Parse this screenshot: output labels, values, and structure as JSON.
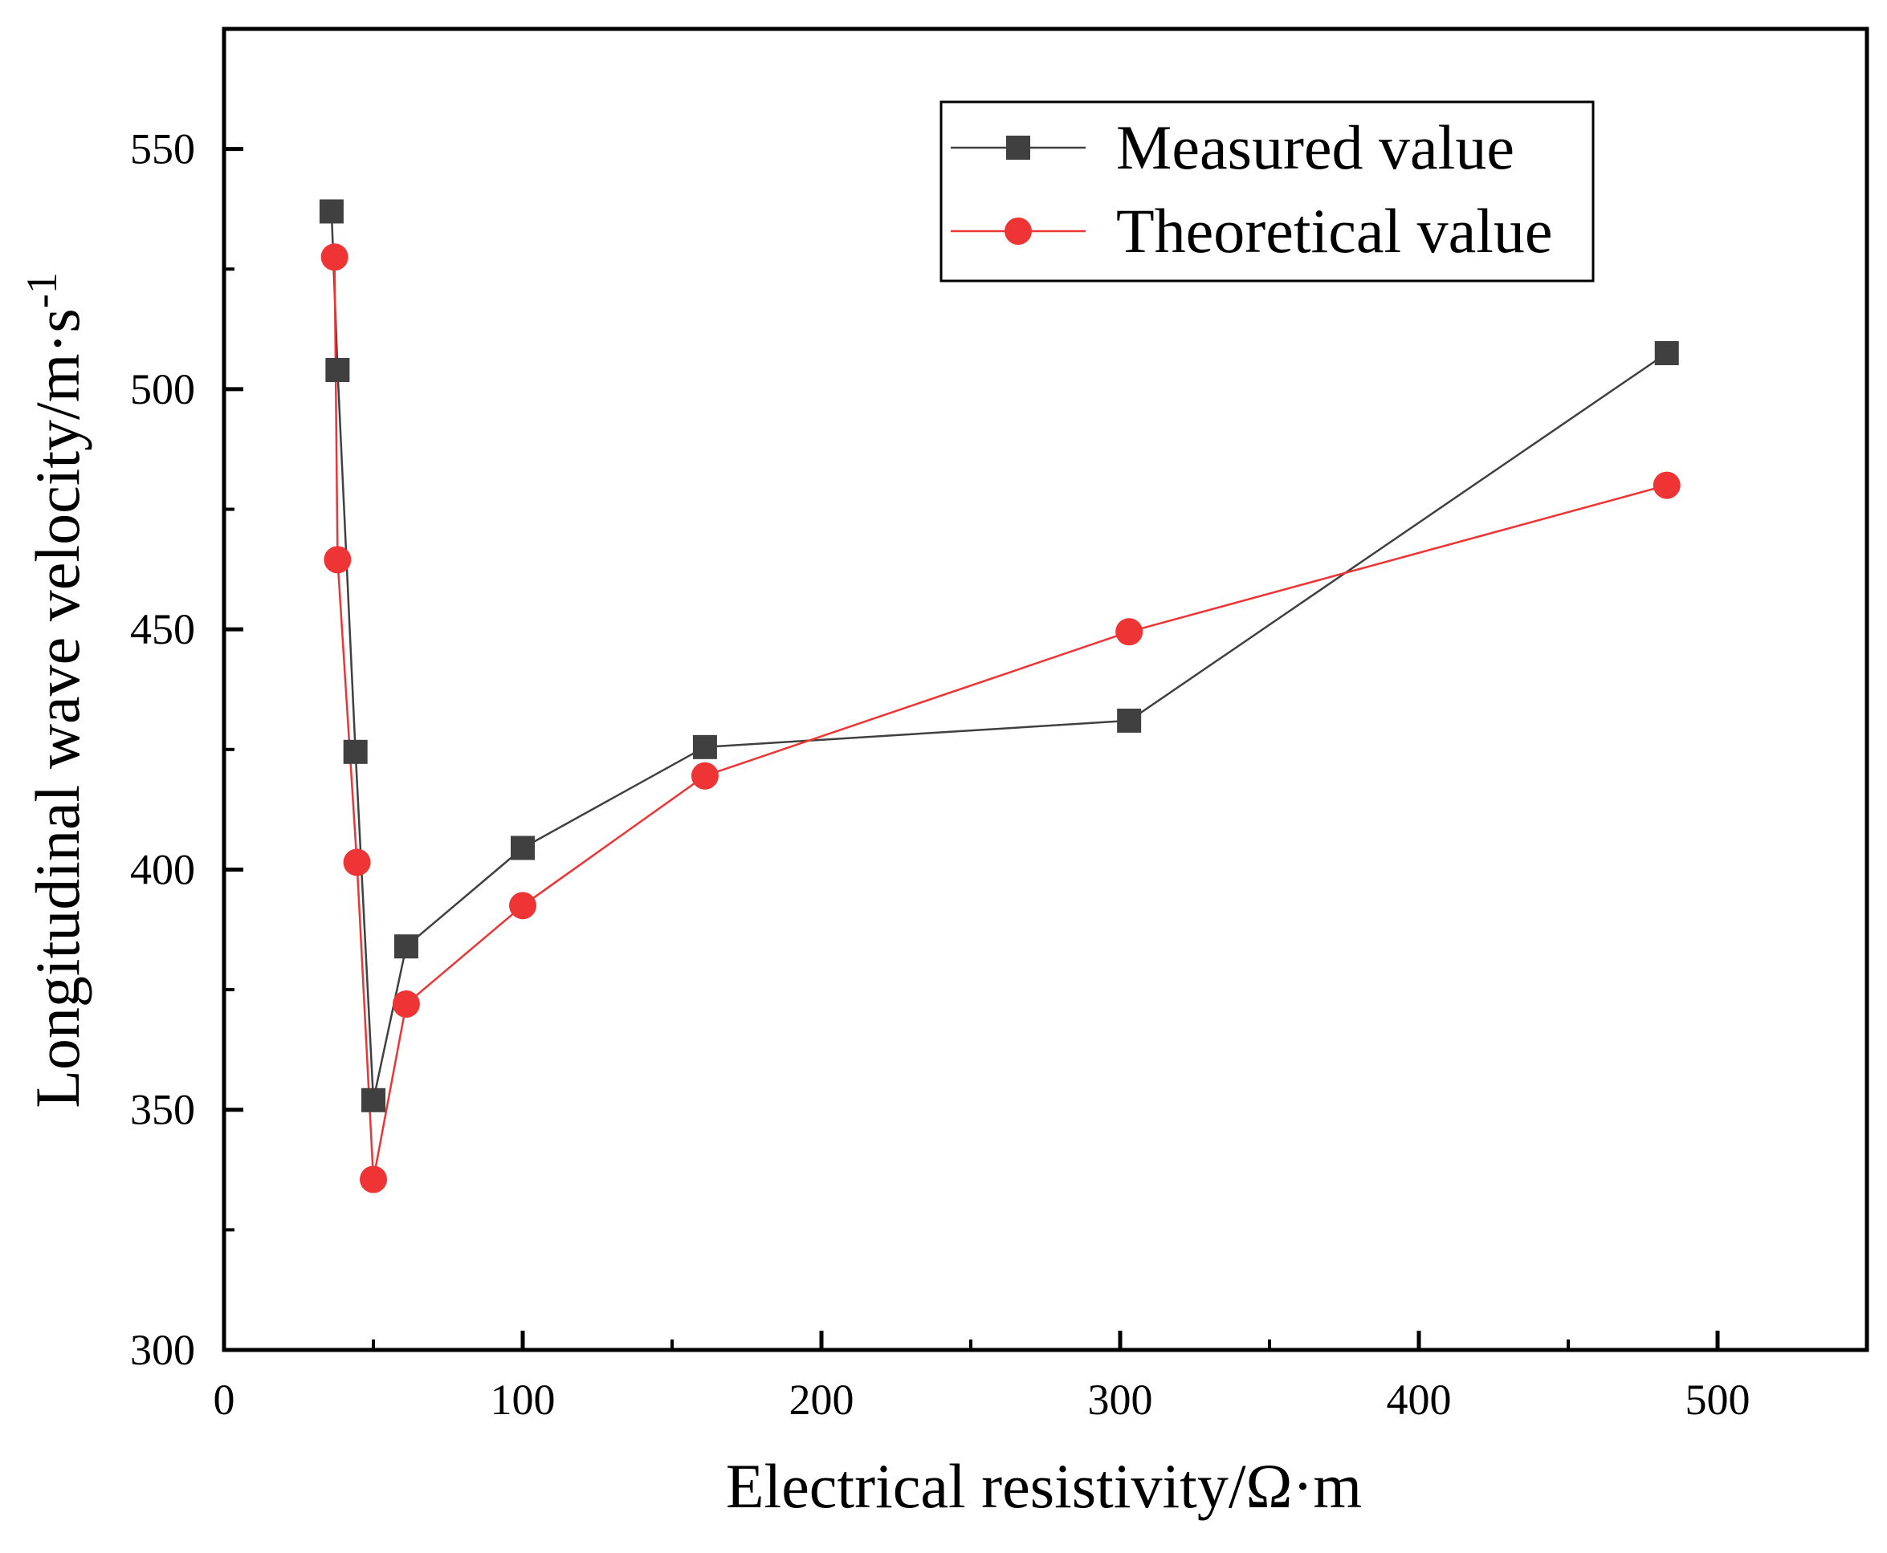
{
  "chart_data": {
    "type": "line",
    "title": "",
    "xlabel": "Electrical resistivity/Ω·m",
    "ylabel": "Longitudinal wave velocity/m·s",
    "ylabel_superscript": "-1",
    "xlim": [
      0,
      550
    ],
    "ylim": [
      300,
      575
    ],
    "x_ticks": [
      0,
      100,
      200,
      300,
      400,
      500
    ],
    "x_tick_labels": [
      "0",
      "100",
      "200",
      "300",
      "400",
      "500"
    ],
    "x_minor_ticks": [
      50,
      150,
      250,
      350,
      450
    ],
    "y_ticks": [
      300,
      350,
      400,
      450,
      500,
      550
    ],
    "y_tick_labels": [
      "300",
      "350",
      "400",
      "450",
      "500",
      "550"
    ],
    "y_minor_ticks": [
      325,
      375,
      425,
      475,
      525
    ],
    "grid": false,
    "legend_position": "top-right",
    "series": [
      {
        "name": "Measured value",
        "marker": "square",
        "color": "#404040",
        "x": [
          36,
          38,
          44,
          50,
          61,
          100,
          161,
          303,
          483
        ],
        "y": [
          537,
          504,
          424.5,
          352,
          384,
          404.5,
          425.5,
          431,
          507.5
        ]
      },
      {
        "name": "Theoretical value",
        "marker": "circle",
        "color": "#ee3434",
        "x": [
          37,
          38,
          44.5,
          50,
          61,
          100,
          161,
          303,
          483
        ],
        "y": [
          527.5,
          464.5,
          401.5,
          335.5,
          372,
          392.5,
          419.5,
          449.5,
          480
        ]
      }
    ]
  }
}
